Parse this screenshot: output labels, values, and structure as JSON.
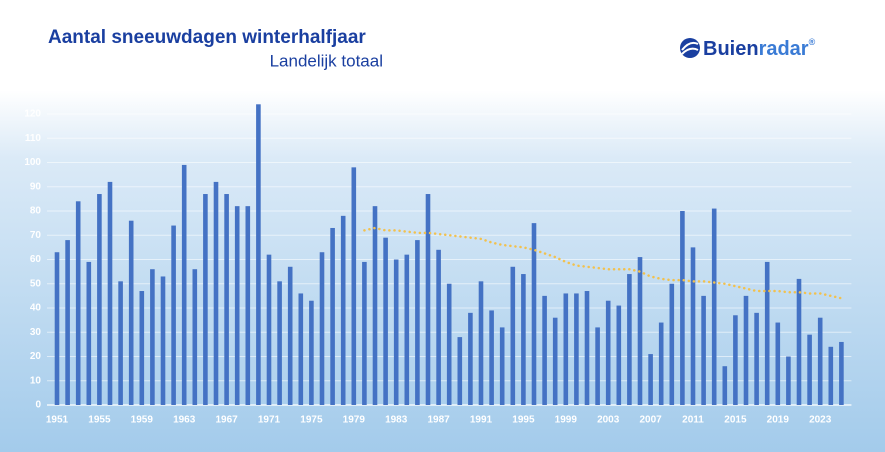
{
  "chart_data": {
    "type": "bar",
    "title": "Aantal sneeuwdagen winterhalfjaar",
    "subtitle": "Landelijk totaal",
    "logo": [
      "Buien",
      "radar",
      "®"
    ],
    "categories": [
      "1951",
      null,
      null,
      null,
      "1955",
      null,
      null,
      null,
      "1959",
      null,
      null,
      null,
      "1963",
      null,
      null,
      null,
      "1967",
      null,
      null,
      null,
      "1971",
      null,
      null,
      null,
      "1975",
      null,
      null,
      null,
      "1979",
      null,
      null,
      null,
      "1983",
      null,
      null,
      null,
      "1987",
      null,
      null,
      null,
      "1991",
      null,
      null,
      null,
      "1995",
      null,
      null,
      null,
      "1999",
      null,
      null,
      null,
      "2003",
      null,
      null,
      null,
      "2007",
      null,
      null,
      null,
      "2011",
      null,
      null,
      null,
      "2015",
      null,
      null,
      null,
      "2019",
      null,
      null,
      null,
      "2023",
      null,
      null
    ],
    "series": [
      {
        "type": "bar",
        "color": "#4472c4",
        "values": [
          63,
          68,
          84,
          59,
          87,
          92,
          51,
          76,
          47,
          56,
          53,
          74,
          99,
          56,
          87,
          92,
          87,
          82,
          82,
          124,
          62,
          51,
          57,
          46,
          43,
          63,
          73,
          78,
          98,
          59,
          82,
          69,
          60,
          62,
          68,
          87,
          64,
          50,
          28,
          38,
          51,
          39,
          32,
          57,
          54,
          75,
          45,
          36,
          46,
          46,
          47,
          32,
          43,
          41,
          54,
          61,
          21,
          34,
          50,
          80,
          65,
          45,
          81,
          16,
          37,
          45,
          38,
          59,
          34,
          20,
          52,
          29,
          36,
          24,
          26
        ]
      },
      {
        "type": "line",
        "color": "#f2c14e",
        "dotted": true,
        "values": [
          null,
          null,
          null,
          null,
          null,
          null,
          null,
          null,
          null,
          null,
          null,
          null,
          null,
          null,
          null,
          null,
          null,
          null,
          null,
          null,
          null,
          null,
          null,
          null,
          null,
          null,
          null,
          null,
          null,
          72,
          73,
          72,
          72,
          71.5,
          71,
          71,
          70.5,
          70,
          69.5,
          69,
          68.5,
          67,
          66,
          65.5,
          65,
          64,
          62.5,
          61,
          59,
          57.5,
          57,
          56.5,
          56,
          56,
          56,
          55,
          53,
          52,
          51.5,
          51.5,
          51,
          51,
          50.5,
          50,
          49,
          48,
          47,
          47,
          47,
          46.5,
          46.5,
          46,
          46,
          45,
          44
        ]
      }
    ],
    "ylim": [
      0,
      120
    ],
    "yticks": [
      0,
      10,
      20,
      30,
      40,
      50,
      60,
      70,
      80,
      90,
      100,
      110,
      120
    ],
    "grid": true
  }
}
